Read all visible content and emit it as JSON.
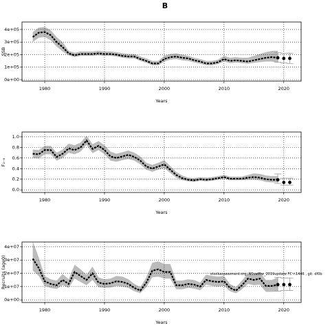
{
  "chart_data": [
    {
      "type": "line",
      "title": "B",
      "y_label": "SSB",
      "x_label": "Years",
      "grid": true,
      "line_color": "#000000",
      "band_color": "#bbbbbb",
      "xlim": [
        1976.2,
        2022.9
      ],
      "xticks": [
        1980,
        1990,
        2000,
        2010,
        2020
      ],
      "ylim": [
        -11000,
        460000
      ],
      "yticks": [
        {
          "value": 0,
          "label": "0e+00"
        },
        {
          "value": 100000,
          "label": "1e+05"
        },
        {
          "value": 200000,
          "label": "2e+05"
        },
        {
          "value": 300000,
          "label": "3e+05"
        },
        {
          "value": 400000,
          "label": "4e+05"
        }
      ],
      "x": [
        1978,
        1979,
        1980,
        1981,
        1982,
        1983,
        1984,
        1985,
        1986,
        1987,
        1988,
        1989,
        1990,
        1991,
        1992,
        1993,
        1994,
        1995,
        1996,
        1997,
        1998,
        1999,
        2000,
        2001,
        2002,
        2003,
        2004,
        2005,
        2006,
        2007,
        2008,
        2009,
        2010,
        2011,
        2012,
        2013,
        2014,
        2015,
        2016,
        2017,
        2018,
        2019
      ],
      "values": [
        340000,
        375000,
        380000,
        355000,
        300000,
        260000,
        210000,
        195000,
        205000,
        205000,
        205000,
        210000,
        205000,
        205000,
        200000,
        190000,
        185000,
        185000,
        165000,
        150000,
        130000,
        130000,
        165000,
        180000,
        185000,
        175000,
        170000,
        155000,
        145000,
        130000,
        130000,
        140000,
        165000,
        150000,
        155000,
        150000,
        145000,
        155000,
        165000,
        175000,
        180000,
        175000
      ],
      "upper": [
        380000,
        415000,
        420000,
        395000,
        340000,
        300000,
        230000,
        215000,
        225000,
        225000,
        225000,
        230000,
        225000,
        225000,
        220000,
        210000,
        205000,
        205000,
        185000,
        170000,
        150000,
        150000,
        190000,
        205000,
        210000,
        200000,
        190000,
        175000,
        165000,
        150000,
        150000,
        160000,
        190000,
        175000,
        180000,
        175000,
        175000,
        190000,
        205000,
        220000,
        230000,
        230000
      ],
      "lower": [
        300000,
        335000,
        340000,
        315000,
        265000,
        225000,
        195000,
        180000,
        190000,
        190000,
        190000,
        195000,
        190000,
        190000,
        185000,
        175000,
        170000,
        170000,
        150000,
        135000,
        115000,
        115000,
        145000,
        160000,
        165000,
        155000,
        150000,
        138000,
        128000,
        115000,
        115000,
        125000,
        145000,
        132000,
        137000,
        132000,
        128000,
        135000,
        140000,
        145000,
        145000,
        135000
      ],
      "forecast_x": [
        2019,
        2020,
        2021
      ],
      "forecast_values": [
        175000,
        170000,
        170000
      ],
      "forecast_lower": [
        140000,
        135000,
        130000
      ],
      "forecast_upper": [
        215000,
        210000,
        210000
      ]
    },
    {
      "type": "line",
      "y_label": "F₂₋₆",
      "x_label": "Years",
      "grid": true,
      "line_color": "#000000",
      "band_color": "#bbbbbb",
      "xlim": [
        1976.2,
        2022.9
      ],
      "xticks": [
        1980,
        1990,
        2000,
        2010,
        2020
      ],
      "ylim": [
        -0.05,
        1.09
      ],
      "yticks": [
        {
          "value": 0,
          "label": "0.0"
        },
        0.2,
        0.4,
        0.6,
        0.8,
        {
          "value": 1,
          "label": "1.0"
        }
      ],
      "x": [
        1978,
        1979,
        1980,
        1981,
        1982,
        1983,
        1984,
        1985,
        1986,
        1987,
        1988,
        1989,
        1990,
        1991,
        1992,
        1993,
        1994,
        1995,
        1996,
        1997,
        1998,
        1999,
        2000,
        2001,
        2002,
        2003,
        2004,
        2005,
        2006,
        2007,
        2008,
        2009,
        2010,
        2011,
        2012,
        2013,
        2014,
        2015,
        2016,
        2017,
        2018,
        2019
      ],
      "values": [
        0.68,
        0.67,
        0.75,
        0.75,
        0.62,
        0.68,
        0.78,
        0.75,
        0.8,
        0.93,
        0.77,
        0.83,
        0.75,
        0.63,
        0.6,
        0.63,
        0.66,
        0.62,
        0.55,
        0.44,
        0.4,
        0.44,
        0.48,
        0.38,
        0.28,
        0.22,
        0.19,
        0.18,
        0.2,
        0.19,
        0.2,
        0.22,
        0.24,
        0.21,
        0.21,
        0.21,
        0.23,
        0.24,
        0.23,
        0.2,
        0.19,
        0.19
      ],
      "upper": [
        0.76,
        0.75,
        0.83,
        0.83,
        0.7,
        0.76,
        0.87,
        0.84,
        0.89,
        1.02,
        0.86,
        0.92,
        0.84,
        0.72,
        0.68,
        0.71,
        0.74,
        0.7,
        0.63,
        0.51,
        0.47,
        0.51,
        0.56,
        0.45,
        0.34,
        0.27,
        0.23,
        0.22,
        0.24,
        0.23,
        0.24,
        0.26,
        0.28,
        0.25,
        0.25,
        0.25,
        0.28,
        0.31,
        0.3,
        0.27,
        0.26,
        0.26
      ],
      "lower": [
        0.6,
        0.59,
        0.67,
        0.67,
        0.55,
        0.6,
        0.7,
        0.67,
        0.72,
        0.85,
        0.69,
        0.75,
        0.67,
        0.55,
        0.53,
        0.56,
        0.58,
        0.55,
        0.48,
        0.38,
        0.34,
        0.38,
        0.41,
        0.32,
        0.23,
        0.18,
        0.16,
        0.15,
        0.17,
        0.16,
        0.17,
        0.19,
        0.21,
        0.18,
        0.18,
        0.18,
        0.19,
        0.19,
        0.18,
        0.15,
        0.14,
        0.14
      ],
      "forecast_x": [
        2019,
        2020,
        2021
      ],
      "forecast_values": [
        0.19,
        0.14,
        0.14
      ],
      "forecast_lower": [
        0.12,
        0.09,
        0.09
      ],
      "forecast_upper": [
        0.3,
        0.22,
        0.22
      ]
    },
    {
      "type": "line",
      "y_label": "Recruits (age0)",
      "x_label": "Years",
      "grid": true,
      "line_color": "#000000",
      "band_color": "#bbbbbb",
      "annotation": "stockassessment.org, NSsaithe_2019update FC r:1446 , git: df0b",
      "xlim": [
        1976.2,
        2022.9
      ],
      "xticks": [
        1980,
        1990,
        2000,
        2010,
        2020
      ],
      "ylim": [
        -2000000,
        43600000
      ],
      "yticks": [
        {
          "value": 0,
          "label": "0e+00"
        },
        {
          "value": 10000000,
          "label": "1e+07"
        },
        {
          "value": 20000000,
          "label": "2e+07"
        },
        {
          "value": 30000000,
          "label": "3e+07"
        },
        {
          "value": 40000000,
          "label": "4e+07"
        }
      ],
      "x": [
        1978,
        1979,
        1980,
        1981,
        1982,
        1983,
        1984,
        1985,
        1986,
        1987,
        1988,
        1989,
        1990,
        1991,
        1992,
        1993,
        1994,
        1995,
        1996,
        1997,
        1998,
        1999,
        2000,
        2001,
        2002,
        2003,
        2004,
        2005,
        2006,
        2007,
        2008,
        2009,
        2010,
        2011,
        2012,
        2013,
        2014,
        2015,
        2016,
        2017,
        2018,
        2019
      ],
      "values": [
        31000000.0,
        24000000.0,
        14000000.0,
        12000000.0,
        11000000.0,
        15000000.0,
        12000000.0,
        21000000.0,
        18000000.0,
        15000000.0,
        20000000.0,
        13000000.0,
        12000000.0,
        12500000.0,
        14000000.0,
        13500000.0,
        12000000.0,
        9000000.0,
        7000000.0,
        13000000.0,
        22000000.0,
        23000000.0,
        21000000.0,
        21000000.0,
        11000000.0,
        11000000.0,
        12000000.0,
        11500000.0,
        10000000.0,
        15000000.0,
        14000000.0,
        13500000.0,
        14000000.0,
        9000000.0,
        7000000.0,
        11000000.0,
        16000000.0,
        15000000.0,
        16000000.0,
        10500000.0,
        10500000.0,
        11500000.0
      ],
      "upper": [
        44000000.0,
        32000000.0,
        18000000.0,
        15500000.0,
        14500000.0,
        19500000.0,
        15500000.0,
        26500000.0,
        23000000.0,
        19000000.0,
        25000000.0,
        17000000.0,
        15500000.0,
        16000000.0,
        18000000.0,
        17500000.0,
        15500000.0,
        12000000.0,
        9500000.0,
        17000000.0,
        28000000.0,
        29000000.0,
        27000000.0,
        27000000.0,
        14500000.0,
        14500000.0,
        15500000.0,
        15000000.0,
        13000000.0,
        19000000.0,
        18000000.0,
        17500000.0,
        18000000.0,
        12000000.0,
        9500000.0,
        14500000.0,
        20000000.0,
        19000000.0,
        21000000.0,
        15000000.0,
        15000000.0,
        17000000.0
      ],
      "lower": [
        22000000.0,
        18000000.0,
        10500000.0,
        9000000.0,
        8200000.0,
        11000000.0,
        9000000.0,
        16000000.0,
        13500000.0,
        11000000.0,
        15000000.0,
        9500000.0,
        9000000.0,
        9300000.0,
        10500000.0,
        10000000.0,
        9000000.0,
        6500000.0,
        5000000.0,
        9500000.0,
        17000000.0,
        17500000.0,
        16000000.0,
        16000000.0,
        8000000.0,
        8000000.0,
        9000000.0,
        8500000.0,
        7200000.0,
        11500000.0,
        10500000.0,
        10000000.0,
        10500000.0,
        6500000.0,
        5000000.0,
        8000000.0,
        12000000.0,
        11000000.0,
        11500000.0,
        6000000.0,
        6000000.0,
        6500000.0
      ],
      "forecast_x": [
        2019,
        2020,
        2021
      ],
      "forecast_values": [
        11500000.0,
        11500000.0,
        11500000.0
      ],
      "forecast_lower": [
        6500000.0,
        7000000.0,
        7000000.0
      ],
      "forecast_upper": [
        17000000.0,
        16500000.0,
        16500000.0
      ]
    }
  ]
}
